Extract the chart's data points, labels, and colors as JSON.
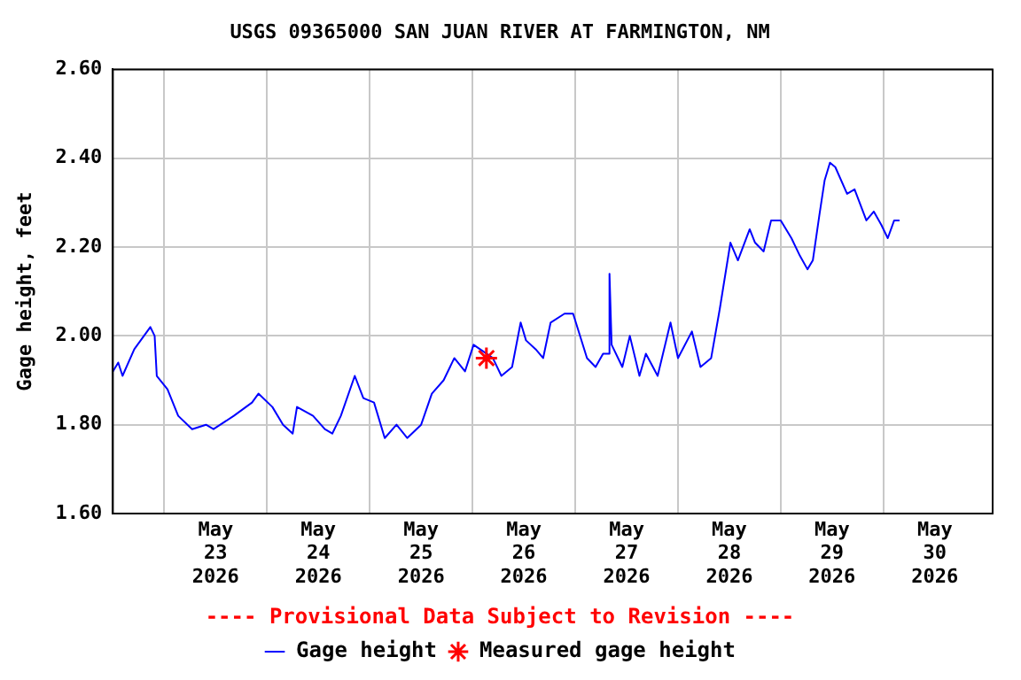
{
  "chart_data": {
    "type": "line",
    "title": "USGS 09365000 SAN JUAN RIVER AT FARMINGTON, NM",
    "ylabel": "Gage height, feet",
    "annotations": [
      "---- Provisional Data Subject to Revision ----"
    ],
    "xlim": [
      "2026-05-22T12:00",
      "2026-05-31T01:30"
    ],
    "xticks": [
      {
        "value": "2026-05-23T00:00",
        "label": null
      },
      {
        "value": "2026-05-24T00:00",
        "label": null
      },
      {
        "value": "2026-05-25T00:00",
        "label": null
      },
      {
        "value": "2026-05-26T00:00",
        "label": null
      },
      {
        "value": "2026-05-27T00:00",
        "label": null
      },
      {
        "value": "2026-05-28T00:00",
        "label": null
      },
      {
        "value": "2026-05-29T00:00",
        "label": null
      },
      {
        "value": "2026-05-30T00:00",
        "label": null
      },
      {
        "value": "2026-05-22T12:00",
        "label": null
      },
      {
        "value": "2026-05-23T12:00",
        "label": "May\n23\n2026"
      },
      {
        "value": "2026-05-24T12:00",
        "label": "May\n24\n2026"
      },
      {
        "value": "2026-05-25T12:00",
        "label": "May\n25\n2026"
      },
      {
        "value": "2026-05-26T12:00",
        "label": "May\n26\n2026"
      },
      {
        "value": "2026-05-27T12:00",
        "label": "May\n27\n2026"
      },
      {
        "value": "2026-05-28T12:00",
        "label": "May\n28\n2026"
      },
      {
        "value": "2026-05-29T12:00",
        "label": "May\n29\n2026"
      },
      {
        "value": "2026-05-30T12:00",
        "label": "May\n30\n2026"
      }
    ],
    "ylim": [
      1.6,
      2.6
    ],
    "yticks": [
      {
        "value": 1.6,
        "label": "1.60"
      },
      {
        "value": 1.8,
        "label": "1.80"
      },
      {
        "value": 2.0,
        "label": "2.00"
      },
      {
        "value": 2.2,
        "label": "2.20"
      },
      {
        "value": 2.4,
        "label": "2.40"
      },
      {
        "value": 2.6,
        "label": "2.60"
      }
    ],
    "grid": true,
    "legend": "bottom",
    "series": [
      {
        "name": "Gage height",
        "type": "line",
        "color": "#0000ff",
        "marker": "none",
        "x": [
          "2026-05-22T12:00",
          "2026-05-22T13:15",
          "2026-05-22T14:15",
          "2026-05-22T17:00",
          "2026-05-22T20:45",
          "2026-05-22T21:45",
          "2026-05-22T22:15",
          "2026-05-23T00:45",
          "2026-05-23T03:15",
          "2026-05-23T06:30",
          "2026-05-23T09:45",
          "2026-05-23T11:30",
          "2026-05-23T16:15",
          "2026-05-23T20:30",
          "2026-05-23T22:00",
          "2026-05-24T01:15",
          "2026-05-24T03:45",
          "2026-05-24T06:00",
          "2026-05-24T07:00",
          "2026-05-24T10:45",
          "2026-05-24T13:30",
          "2026-05-24T15:15",
          "2026-05-24T17:15",
          "2026-05-24T20:30",
          "2026-05-24T22:30",
          "2026-05-25T01:00",
          "2026-05-25T03:30",
          "2026-05-25T06:15",
          "2026-05-25T08:45",
          "2026-05-25T12:00",
          "2026-05-25T14:30",
          "2026-05-25T17:15",
          "2026-05-25T19:45",
          "2026-05-25T22:15",
          "2026-05-26T00:15",
          "2026-05-26T04:45",
          "2026-05-26T06:45",
          "2026-05-26T09:15",
          "2026-05-26T11:15",
          "2026-05-26T12:30",
          "2026-05-26T14:45",
          "2026-05-26T16:30",
          "2026-05-26T18:15",
          "2026-05-26T21:30",
          "2026-05-26T23:30",
          "2026-05-27T02:45",
          "2026-05-27T04:45",
          "2026-05-27T06:30",
          "2026-05-27T07:45",
          "2026-05-27T08:00",
          "2026-05-27T08:30",
          "2026-05-27T11:00",
          "2026-05-27T12:45",
          "2026-05-27T15:00",
          "2026-05-27T16:30",
          "2026-05-27T19:15",
          "2026-05-27T22:15",
          "2026-05-28T00:00",
          "2026-05-28T03:15",
          "2026-05-28T05:15",
          "2026-05-28T07:45",
          "2026-05-28T09:45",
          "2026-05-28T12:15",
          "2026-05-28T14:00",
          "2026-05-28T16:45",
          "2026-05-28T18:00",
          "2026-05-28T20:00",
          "2026-05-28T21:45",
          "2026-05-29T00:00",
          "2026-05-29T02:30",
          "2026-05-29T04:30",
          "2026-05-29T06:15",
          "2026-05-29T07:30",
          "2026-05-29T09:00",
          "2026-05-29T10:15",
          "2026-05-29T11:30",
          "2026-05-29T12:45",
          "2026-05-29T15:30",
          "2026-05-29T17:15",
          "2026-05-29T20:00",
          "2026-05-29T21:45",
          "2026-05-29T23:30",
          "2026-05-30T01:00",
          "2026-05-30T02:30",
          "2026-05-30T03:45"
        ],
        "values": [
          1.92,
          1.94,
          1.91,
          1.97,
          2.02,
          2.0,
          1.91,
          1.88,
          1.82,
          1.79,
          1.8,
          1.79,
          1.82,
          1.85,
          1.87,
          1.84,
          1.8,
          1.78,
          1.84,
          1.82,
          1.79,
          1.78,
          1.82,
          1.91,
          1.86,
          1.85,
          1.77,
          1.8,
          1.77,
          1.8,
          1.87,
          1.9,
          1.95,
          1.92,
          1.98,
          1.95,
          1.91,
          1.93,
          2.03,
          1.99,
          1.97,
          1.95,
          2.03,
          2.05,
          2.05,
          1.95,
          1.93,
          1.96,
          1.96,
          2.14,
          1.98,
          1.93,
          2.0,
          1.91,
          1.96,
          1.91,
          2.03,
          1.95,
          2.01,
          1.93,
          1.95,
          2.06,
          2.21,
          2.17,
          2.24,
          2.21,
          2.19,
          2.26,
          2.26,
          2.22,
          2.18,
          2.15,
          2.17,
          2.27,
          2.35,
          2.39,
          2.38,
          2.32,
          2.33,
          2.26,
          2.28,
          2.25,
          2.22,
          2.26,
          2.26
        ]
      },
      {
        "name": "Measured gage height",
        "type": "scatter",
        "color": "#ff0000",
        "marker": "cross",
        "x": [
          "2026-05-26T03:15"
        ],
        "values": [
          1.95
        ]
      }
    ]
  }
}
